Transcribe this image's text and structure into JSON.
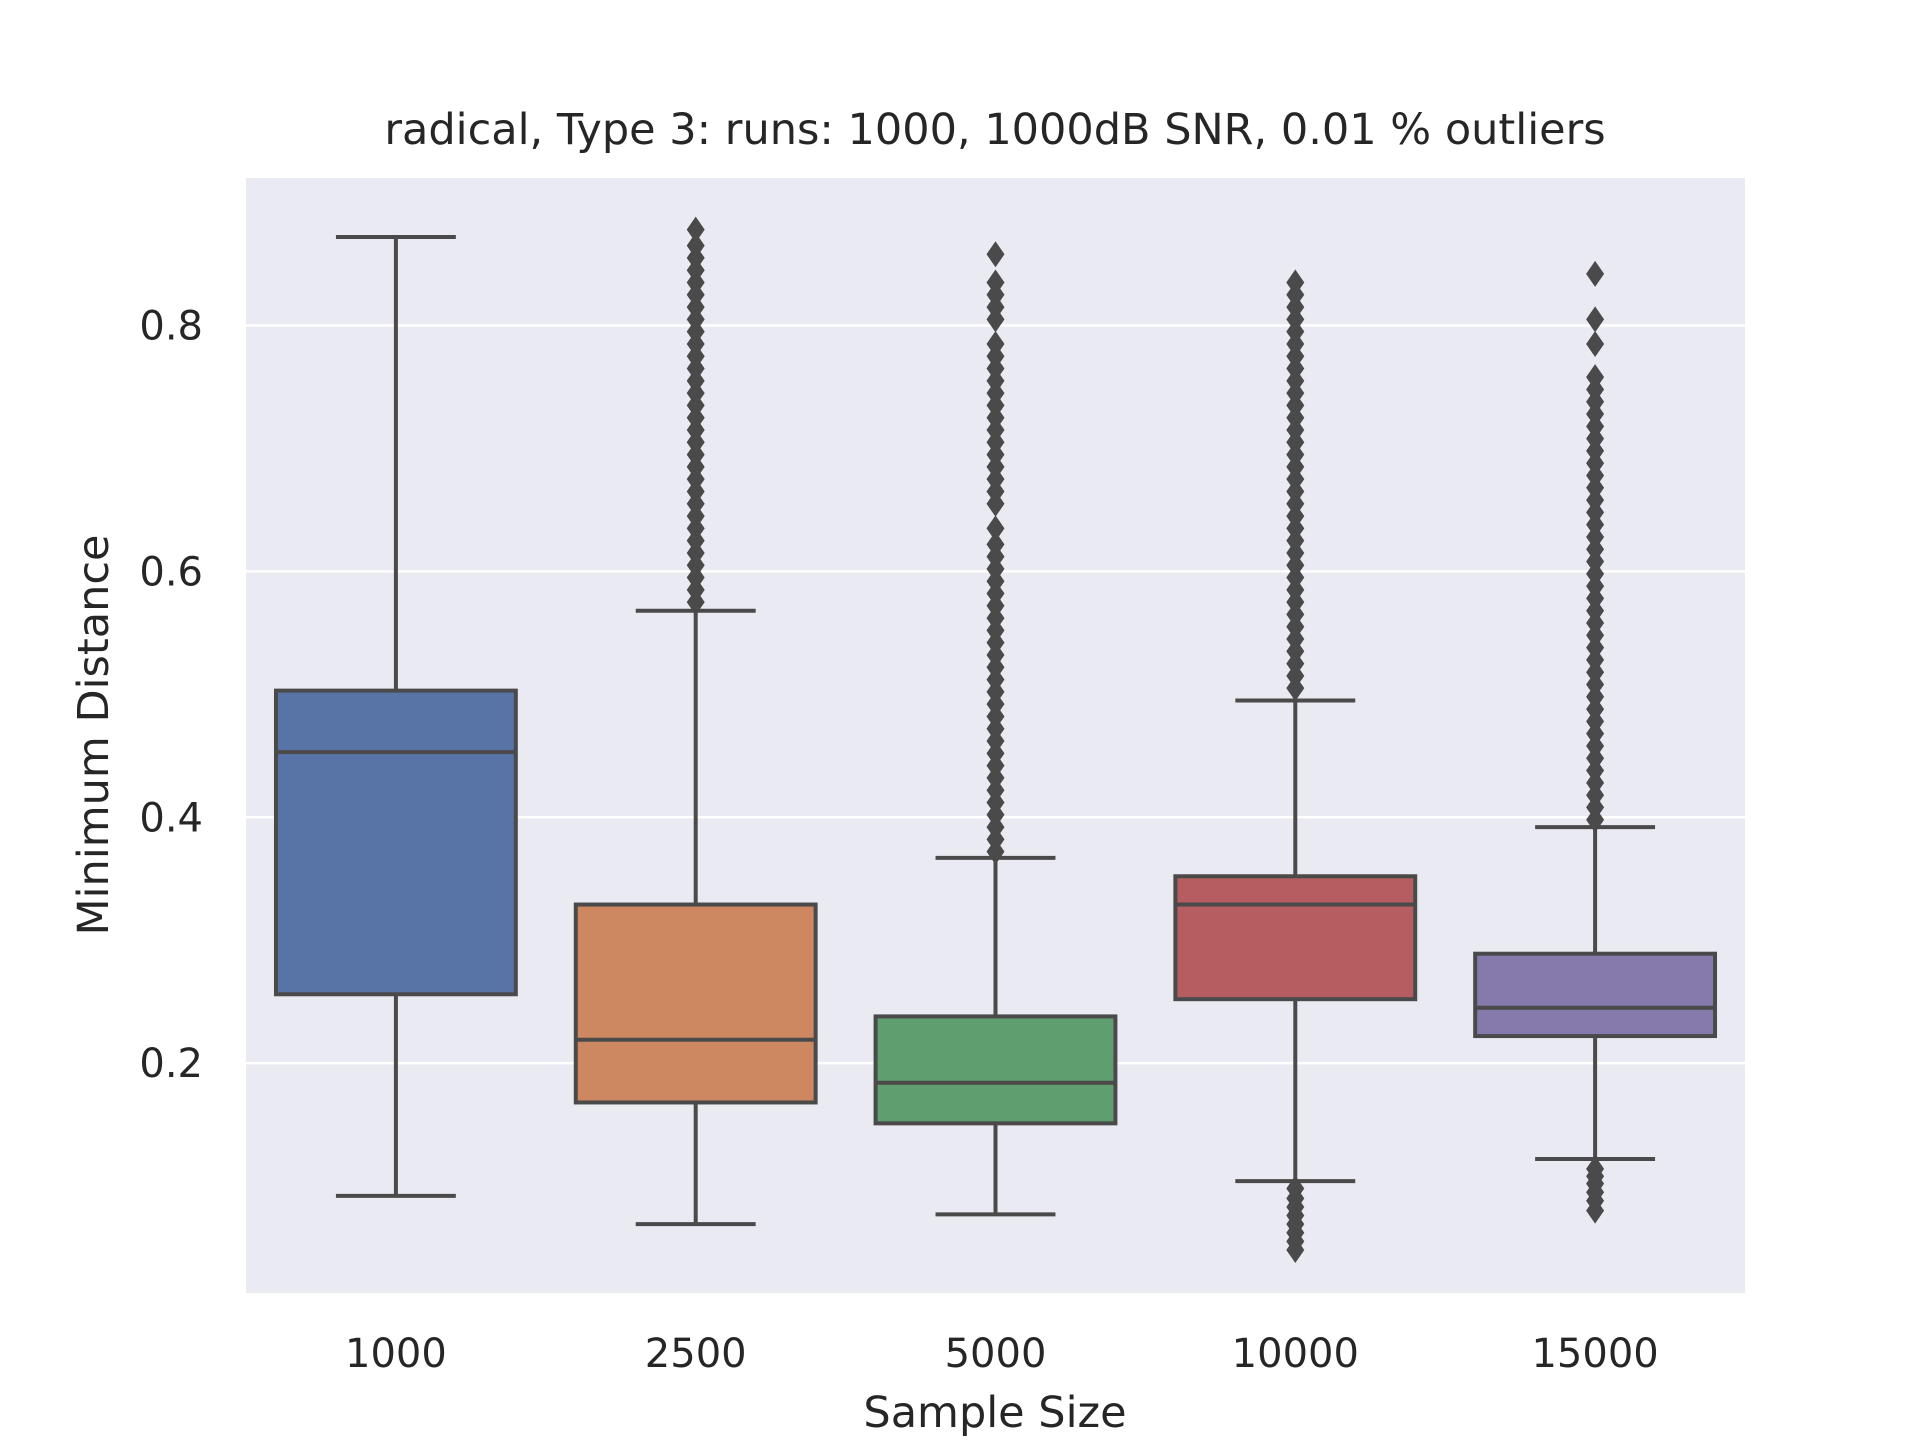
{
  "chart_data": {
    "type": "box",
    "title": "radical,  Type 3:  runs: 1000, 1000dB SNR, 0.01 % outliers",
    "xlabel": "Sample Size",
    "ylabel": "Minimum Distance",
    "ylim": [
      0.013,
      0.92
    ],
    "yticks": [
      0.2,
      0.4,
      0.6,
      0.8
    ],
    "ytick_labels": [
      "0.2",
      "0.4",
      "0.6",
      "0.8"
    ],
    "grid": true,
    "legend": "none",
    "categories": [
      "1000",
      "2500",
      "5000",
      "10000",
      "15000"
    ],
    "boxes": [
      {
        "category": "1000",
        "whisker_low": 0.092,
        "q1": 0.256,
        "median": 0.453,
        "q3": 0.503,
        "whisker_high": 0.872,
        "color": "#5874a6",
        "outliers_low": [],
        "outliers_high": []
      },
      {
        "category": "2500",
        "whisker_low": 0.069,
        "q1": 0.168,
        "median": 0.219,
        "q3": 0.329,
        "whisker_high": 0.568,
        "color": "#cd8862",
        "outliers_low": [],
        "outliers_high": [
          0.575,
          0.585,
          0.595,
          0.605,
          0.615,
          0.625,
          0.635,
          0.645,
          0.655,
          0.665,
          0.675,
          0.685,
          0.695,
          0.705,
          0.715,
          0.725,
          0.735,
          0.745,
          0.755,
          0.765,
          0.775,
          0.785,
          0.795,
          0.805,
          0.815,
          0.825,
          0.835,
          0.845,
          0.855,
          0.865,
          0.878
        ]
      },
      {
        "category": "5000",
        "whisker_low": 0.077,
        "q1": 0.151,
        "median": 0.184,
        "q3": 0.238,
        "whisker_high": 0.367,
        "color": "#5f9e6e",
        "outliers_low": [],
        "outliers_high": [
          0.372,
          0.382,
          0.392,
          0.402,
          0.412,
          0.422,
          0.432,
          0.442,
          0.452,
          0.462,
          0.472,
          0.482,
          0.492,
          0.502,
          0.512,
          0.522,
          0.532,
          0.542,
          0.552,
          0.562,
          0.572,
          0.582,
          0.592,
          0.602,
          0.612,
          0.622,
          0.635,
          0.655,
          0.665,
          0.675,
          0.685,
          0.695,
          0.705,
          0.715,
          0.725,
          0.735,
          0.745,
          0.755,
          0.765,
          0.775,
          0.785,
          0.805,
          0.815,
          0.825,
          0.835,
          0.858
        ]
      },
      {
        "category": "10000",
        "whisker_low": 0.104,
        "q1": 0.252,
        "median": 0.329,
        "q3": 0.352,
        "whisker_high": 0.495,
        "color": "#b55d60",
        "outliers_low": [
          0.048,
          0.055,
          0.062,
          0.069,
          0.076,
          0.083,
          0.09,
          0.098
        ],
        "outliers_high": [
          0.505,
          0.515,
          0.525,
          0.535,
          0.545,
          0.555,
          0.565,
          0.575,
          0.585,
          0.595,
          0.605,
          0.615,
          0.625,
          0.635,
          0.645,
          0.655,
          0.665,
          0.675,
          0.685,
          0.695,
          0.705,
          0.715,
          0.725,
          0.735,
          0.745,
          0.755,
          0.765,
          0.775,
          0.785,
          0.795,
          0.805,
          0.815,
          0.825,
          0.835
        ]
      },
      {
        "category": "15000",
        "whisker_low": 0.122,
        "q1": 0.222,
        "median": 0.245,
        "q3": 0.289,
        "whisker_high": 0.392,
        "color": "#857aab",
        "outliers_low": [
          0.08,
          0.088,
          0.095,
          0.102,
          0.108,
          0.114
        ],
        "outliers_high": [
          0.398,
          0.408,
          0.418,
          0.428,
          0.438,
          0.448,
          0.458,
          0.468,
          0.478,
          0.488,
          0.498,
          0.508,
          0.518,
          0.528,
          0.538,
          0.548,
          0.558,
          0.568,
          0.578,
          0.588,
          0.598,
          0.608,
          0.618,
          0.628,
          0.638,
          0.648,
          0.658,
          0.668,
          0.678,
          0.688,
          0.698,
          0.708,
          0.718,
          0.728,
          0.738,
          0.748,
          0.758,
          0.785,
          0.805,
          0.842
        ]
      }
    ]
  }
}
